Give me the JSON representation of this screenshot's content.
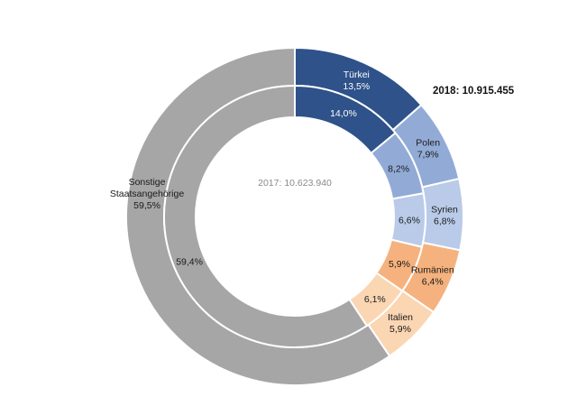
{
  "chart_data": {
    "type": "pie",
    "subtype": "nested-donut",
    "title": "",
    "colors": {
      "tuerkei": "#2e5289",
      "polen": "#92abd6",
      "syrien": "#b9cbe8",
      "rumaenien": "#f5b27e",
      "italien": "#fbd6b3",
      "sonstige": "#a6a6a6",
      "separator": "#ffffff",
      "label_dark": "#ffffff",
      "label_light": "#1a1a1a"
    },
    "outer": {
      "label": "2018: 10.915.455",
      "slices": [
        {
          "name": "Türkei",
          "value": 13.5,
          "label": "13,5%",
          "color_key": "tuerkei",
          "text_color": "label_dark"
        },
        {
          "name": "Polen",
          "value": 7.9,
          "label": "7,9%",
          "color_key": "polen",
          "text_color": "label_light"
        },
        {
          "name": "Syrien",
          "value": 6.8,
          "label": "6,8%",
          "color_key": "syrien",
          "text_color": "label_light"
        },
        {
          "name": "Rumänien",
          "value": 6.4,
          "label": "6,4%",
          "color_key": "rumaenien",
          "text_color": "label_light"
        },
        {
          "name": "Italien",
          "value": 5.9,
          "label": "5,9%",
          "color_key": "italien",
          "text_color": "label_light"
        },
        {
          "name": "Sonstige Staatsangehörige",
          "name_lines": [
            "Sonstige",
            "Staatsangehörige"
          ],
          "value": 59.5,
          "label": "59,5%",
          "color_key": "sonstige",
          "text_color": "label_light"
        }
      ]
    },
    "inner": {
      "label": "2017: 10.623.940",
      "slices": [
        {
          "name": "Türkei",
          "value": 14.0,
          "label": "14,0%",
          "color_key": "tuerkei",
          "text_color": "label_dark"
        },
        {
          "name": "Polen",
          "value": 8.2,
          "label": "8,2%",
          "color_key": "polen",
          "text_color": "label_light"
        },
        {
          "name": "Syrien",
          "value": 6.6,
          "label": "6,6%",
          "color_key": "syrien",
          "text_color": "label_light"
        },
        {
          "name": "Rumänien",
          "value": 5.9,
          "label": "5,9%",
          "color_key": "rumaenien",
          "text_color": "label_light"
        },
        {
          "name": "Italien",
          "value": 6.1,
          "label": "6,1%",
          "color_key": "italien",
          "text_color": "label_light"
        },
        {
          "name": "Sonstige Staatsangehörige",
          "value": 59.4,
          "label": "59,4%",
          "color_key": "sonstige",
          "text_color": "label_light"
        }
      ]
    }
  }
}
